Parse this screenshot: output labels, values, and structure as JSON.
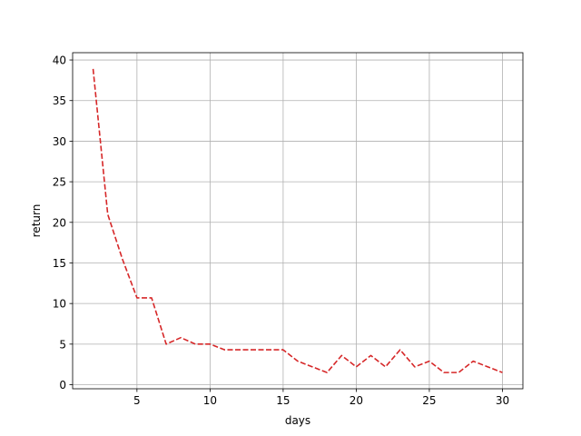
{
  "chart_data": {
    "type": "line",
    "title": "",
    "xlabel": "days",
    "ylabel": "return",
    "xlim": [
      0.6,
      31.4
    ],
    "ylim": [
      -0.5,
      40.9
    ],
    "xticks": [
      5,
      10,
      15,
      20,
      25,
      30
    ],
    "yticks": [
      0,
      5,
      10,
      15,
      20,
      25,
      30,
      35,
      40
    ],
    "grid": true,
    "series": [
      {
        "color": "#d62728",
        "linestyle": "dashed",
        "x": [
          2,
          3,
          4,
          5,
          6,
          7,
          8,
          9,
          10,
          11,
          12,
          13,
          14,
          15,
          16,
          17,
          18,
          19,
          20,
          21,
          22,
          23,
          24,
          25,
          26,
          27,
          28,
          29,
          30
        ],
        "y": [
          38.9,
          21.0,
          15.5,
          10.7,
          10.7,
          5.0,
          5.8,
          5.0,
          5.0,
          4.3,
          4.3,
          4.3,
          4.3,
          4.3,
          2.9,
          2.2,
          1.5,
          3.6,
          2.2,
          3.6,
          2.2,
          4.3,
          2.2,
          2.9,
          1.5,
          1.5,
          2.9,
          2.2,
          1.5
        ]
      }
    ]
  }
}
